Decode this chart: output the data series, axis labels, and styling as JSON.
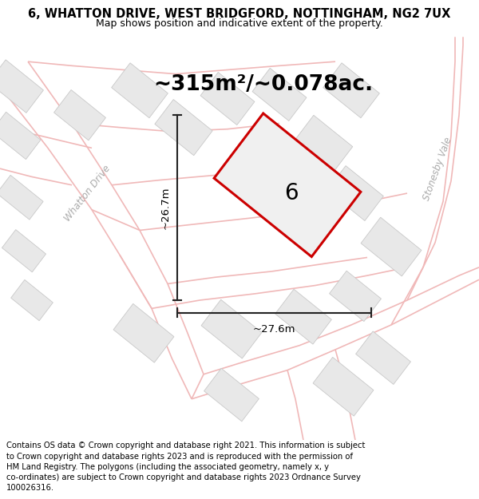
{
  "title_line1": "6, WHATTON DRIVE, WEST BRIDGFORD, NOTTINGHAM, NG2 7UX",
  "title_line2": "Map shows position and indicative extent of the property.",
  "area_text": "~315m²/~0.078ac.",
  "dim_vertical": "~26.7m",
  "dim_horizontal": "~27.6m",
  "plot_number": "6",
  "footer_text": "Contains OS data © Crown copyright and database right 2021. This information is subject to Crown copyright and database rights 2023 and is reproduced with the permission of HM Land Registry. The polygons (including the associated geometry, namely x, y co-ordinates) are subject to Crown copyright and database rights 2023 Ordnance Survey 100026316.",
  "bg_color": "#ffffff",
  "road_color": "#f0b8b8",
  "road_lw": 1.2,
  "block_color": "#e8e8e8",
  "block_edge": "#c8c8c8",
  "block_edge_lw": 0.6,
  "plot_fill": "#f0f0f0",
  "plot_edge": "#cc0000",
  "plot_edge_lw": 2.2,
  "dim_line_color": "#222222",
  "dim_line_lw": 1.5,
  "street_label_color": "#aaaaaa",
  "street_label2_color": "#aaaaaa",
  "title_fontsize": 10.5,
  "subtitle_fontsize": 9,
  "area_fontsize": 19,
  "dim_fontsize": 9.5,
  "plot_num_fontsize": 20,
  "footer_fontsize": 7.2,
  "whatton_drive_label_fontsize": 8.5,
  "stonesby_vale_label_fontsize": 8.5
}
